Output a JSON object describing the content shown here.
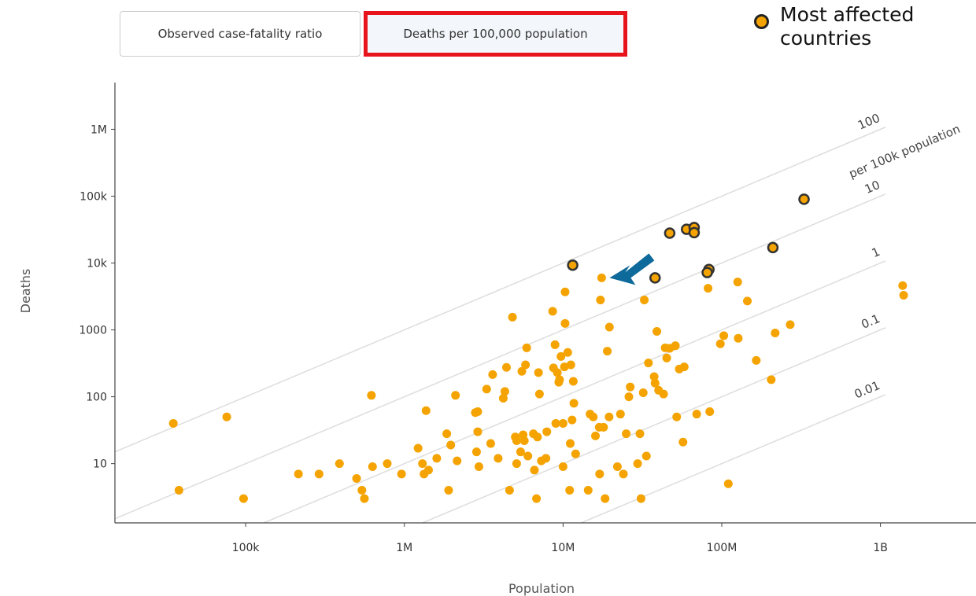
{
  "tabs": [
    {
      "label": "Observed case-fatality ratio",
      "selected": false
    },
    {
      "label": "Deaths per 100,000 population",
      "selected": true
    }
  ],
  "legend": {
    "label": "Most affected countries",
    "fill_color": "#f4a300",
    "stroke_color": "#222222"
  },
  "colors": {
    "point": "#f4a300",
    "highlight_box": "#e8141c",
    "arrow": "#0e6a9a",
    "reference_line": "#dddddd",
    "axis": "#444444"
  },
  "annotation": {
    "icon": "arrow-icon",
    "points_to": "country at ~17M population, ~6k deaths"
  },
  "chart_data": {
    "type": "scatter",
    "x_scale": "log",
    "y_scale": "log",
    "xlabel": "Population",
    "ylabel": "Deaths",
    "xlim": [
      15000,
      4000000000
    ],
    "ylim": [
      1.3,
      5000000
    ],
    "x_ticks": [
      {
        "value": 100000,
        "label": "100k"
      },
      {
        "value": 1000000,
        "label": "1M"
      },
      {
        "value": 10000000,
        "label": "10M"
      },
      {
        "value": 100000000,
        "label": "100M"
      },
      {
        "value": 1000000000,
        "label": "1B"
      }
    ],
    "y_ticks": [
      {
        "value": 10,
        "label": "10"
      },
      {
        "value": 100,
        "label": "100"
      },
      {
        "value": 1000,
        "label": "1000"
      },
      {
        "value": 10000,
        "label": "10k"
      },
      {
        "value": 100000,
        "label": "100k"
      },
      {
        "value": 1000000,
        "label": "1M"
      }
    ],
    "reference_lines": [
      {
        "rate_per_100k": 100,
        "label": "100",
        "sublabel": "per 100k population"
      },
      {
        "rate_per_100k": 10,
        "label": "10"
      },
      {
        "rate_per_100k": 1,
        "label": "1"
      },
      {
        "rate_per_100k": 0.1,
        "label": "0.1"
      },
      {
        "rate_per_100k": 0.01,
        "label": "0.01"
      }
    ],
    "series": [
      {
        "name": "Most affected countries",
        "highlighted": true,
        "points": [
          [
            11500000,
            9300
          ],
          [
            38000000,
            6000
          ],
          [
            47000000,
            28000
          ],
          [
            60000000,
            32000
          ],
          [
            67000000,
            34000
          ],
          [
            67000000,
            28500
          ],
          [
            83000000,
            8000
          ],
          [
            81000000,
            7200
          ],
          [
            210000000,
            17000
          ],
          [
            330000000,
            90000
          ]
        ]
      },
      {
        "highlighted": false,
        "points": [
          [
            35000,
            40
          ],
          [
            38000,
            4
          ],
          [
            76000,
            50
          ],
          [
            97000,
            3
          ],
          [
            215000,
            7
          ],
          [
            290000,
            7
          ],
          [
            390000,
            10
          ],
          [
            500000,
            6
          ],
          [
            540000,
            4
          ],
          [
            560000,
            3
          ],
          [
            620000,
            105
          ],
          [
            630000,
            9
          ],
          [
            780000,
            10
          ],
          [
            960000,
            7
          ],
          [
            1220000,
            17
          ],
          [
            1300000,
            10
          ],
          [
            1330000,
            7
          ],
          [
            1370000,
            62
          ],
          [
            1420000,
            8
          ],
          [
            1600000,
            12
          ],
          [
            1850000,
            28
          ],
          [
            1900000,
            4
          ],
          [
            1960000,
            19
          ],
          [
            2100000,
            105
          ],
          [
            2150000,
            11
          ],
          [
            2800000,
            58
          ],
          [
            2850000,
            15
          ],
          [
            2900000,
            60
          ],
          [
            2900000,
            30
          ],
          [
            2950000,
            9
          ],
          [
            3300000,
            130
          ],
          [
            3500000,
            20
          ],
          [
            3600000,
            215
          ],
          [
            3900000,
            12
          ],
          [
            4200000,
            95
          ],
          [
            4300000,
            120
          ],
          [
            4400000,
            275
          ],
          [
            4600000,
            4
          ],
          [
            4800000,
            1550
          ],
          [
            5000000,
            25
          ],
          [
            5100000,
            22
          ],
          [
            5100000,
            10
          ],
          [
            5400000,
            15
          ],
          [
            5500000,
            240
          ],
          [
            5600000,
            27
          ],
          [
            5700000,
            22
          ],
          [
            5800000,
            300
          ],
          [
            5900000,
            540
          ],
          [
            6000000,
            13
          ],
          [
            6500000,
            28
          ],
          [
            6600000,
            8
          ],
          [
            6800000,
            3
          ],
          [
            6900000,
            25
          ],
          [
            7000000,
            230
          ],
          [
            7100000,
            110
          ],
          [
            7300000,
            11
          ],
          [
            7800000,
            12
          ],
          [
            7900000,
            30
          ],
          [
            8600000,
            1900
          ],
          [
            8700000,
            270
          ],
          [
            8900000,
            600
          ],
          [
            9000000,
            40
          ],
          [
            9200000,
            230
          ],
          [
            9400000,
            165
          ],
          [
            9500000,
            180
          ],
          [
            9700000,
            400
          ],
          [
            10000000,
            40
          ],
          [
            10000000,
            9
          ],
          [
            10200000,
            280
          ],
          [
            10300000,
            1250
          ],
          [
            10300000,
            3700
          ],
          [
            10700000,
            460
          ],
          [
            11000000,
            4
          ],
          [
            11100000,
            20
          ],
          [
            11200000,
            300
          ],
          [
            11400000,
            45
          ],
          [
            11600000,
            170
          ],
          [
            11700000,
            80
          ],
          [
            12000000,
            14
          ],
          [
            14400000,
            4
          ],
          [
            14800000,
            55
          ],
          [
            15500000,
            50
          ],
          [
            16000000,
            26
          ],
          [
            16900000,
            35
          ],
          [
            17000000,
            7
          ],
          [
            17200000,
            2800
          ],
          [
            17500000,
            6000
          ],
          [
            18000000,
            35
          ],
          [
            18400000,
            3
          ],
          [
            19000000,
            480
          ],
          [
            19500000,
            50
          ],
          [
            19600000,
            1100
          ],
          [
            22000000,
            9
          ],
          [
            23000000,
            55
          ],
          [
            24000000,
            7
          ],
          [
            25000000,
            28
          ],
          [
            26000000,
            100
          ],
          [
            26500000,
            140
          ],
          [
            29500000,
            10
          ],
          [
            30500000,
            28
          ],
          [
            31000000,
            3
          ],
          [
            32000000,
            115
          ],
          [
            32500000,
            2800
          ],
          [
            33500000,
            13
          ],
          [
            34500000,
            320
          ],
          [
            37500000,
            200
          ],
          [
            38000000,
            160
          ],
          [
            39000000,
            950
          ],
          [
            40000000,
            125
          ],
          [
            43000000,
            110
          ],
          [
            44000000,
            540
          ],
          [
            45000000,
            380
          ],
          [
            47000000,
            530
          ],
          [
            51000000,
            580
          ],
          [
            52000000,
            50
          ],
          [
            54000000,
            260
          ],
          [
            57000000,
            21
          ],
          [
            58000000,
            280
          ],
          [
            69500000,
            55
          ],
          [
            82000000,
            4200
          ],
          [
            84000000,
            60
          ],
          [
            98000000,
            620
          ],
          [
            103000000,
            820
          ],
          [
            110000000,
            5
          ],
          [
            126000000,
            5200
          ],
          [
            127000000,
            750
          ],
          [
            145000000,
            2700
          ],
          [
            165000000,
            350
          ],
          [
            205000000,
            180
          ],
          [
            217000000,
            900
          ],
          [
            270000000,
            1200
          ],
          [
            1380000000,
            4600
          ],
          [
            1400000000,
            3300
          ]
        ]
      }
    ]
  }
}
